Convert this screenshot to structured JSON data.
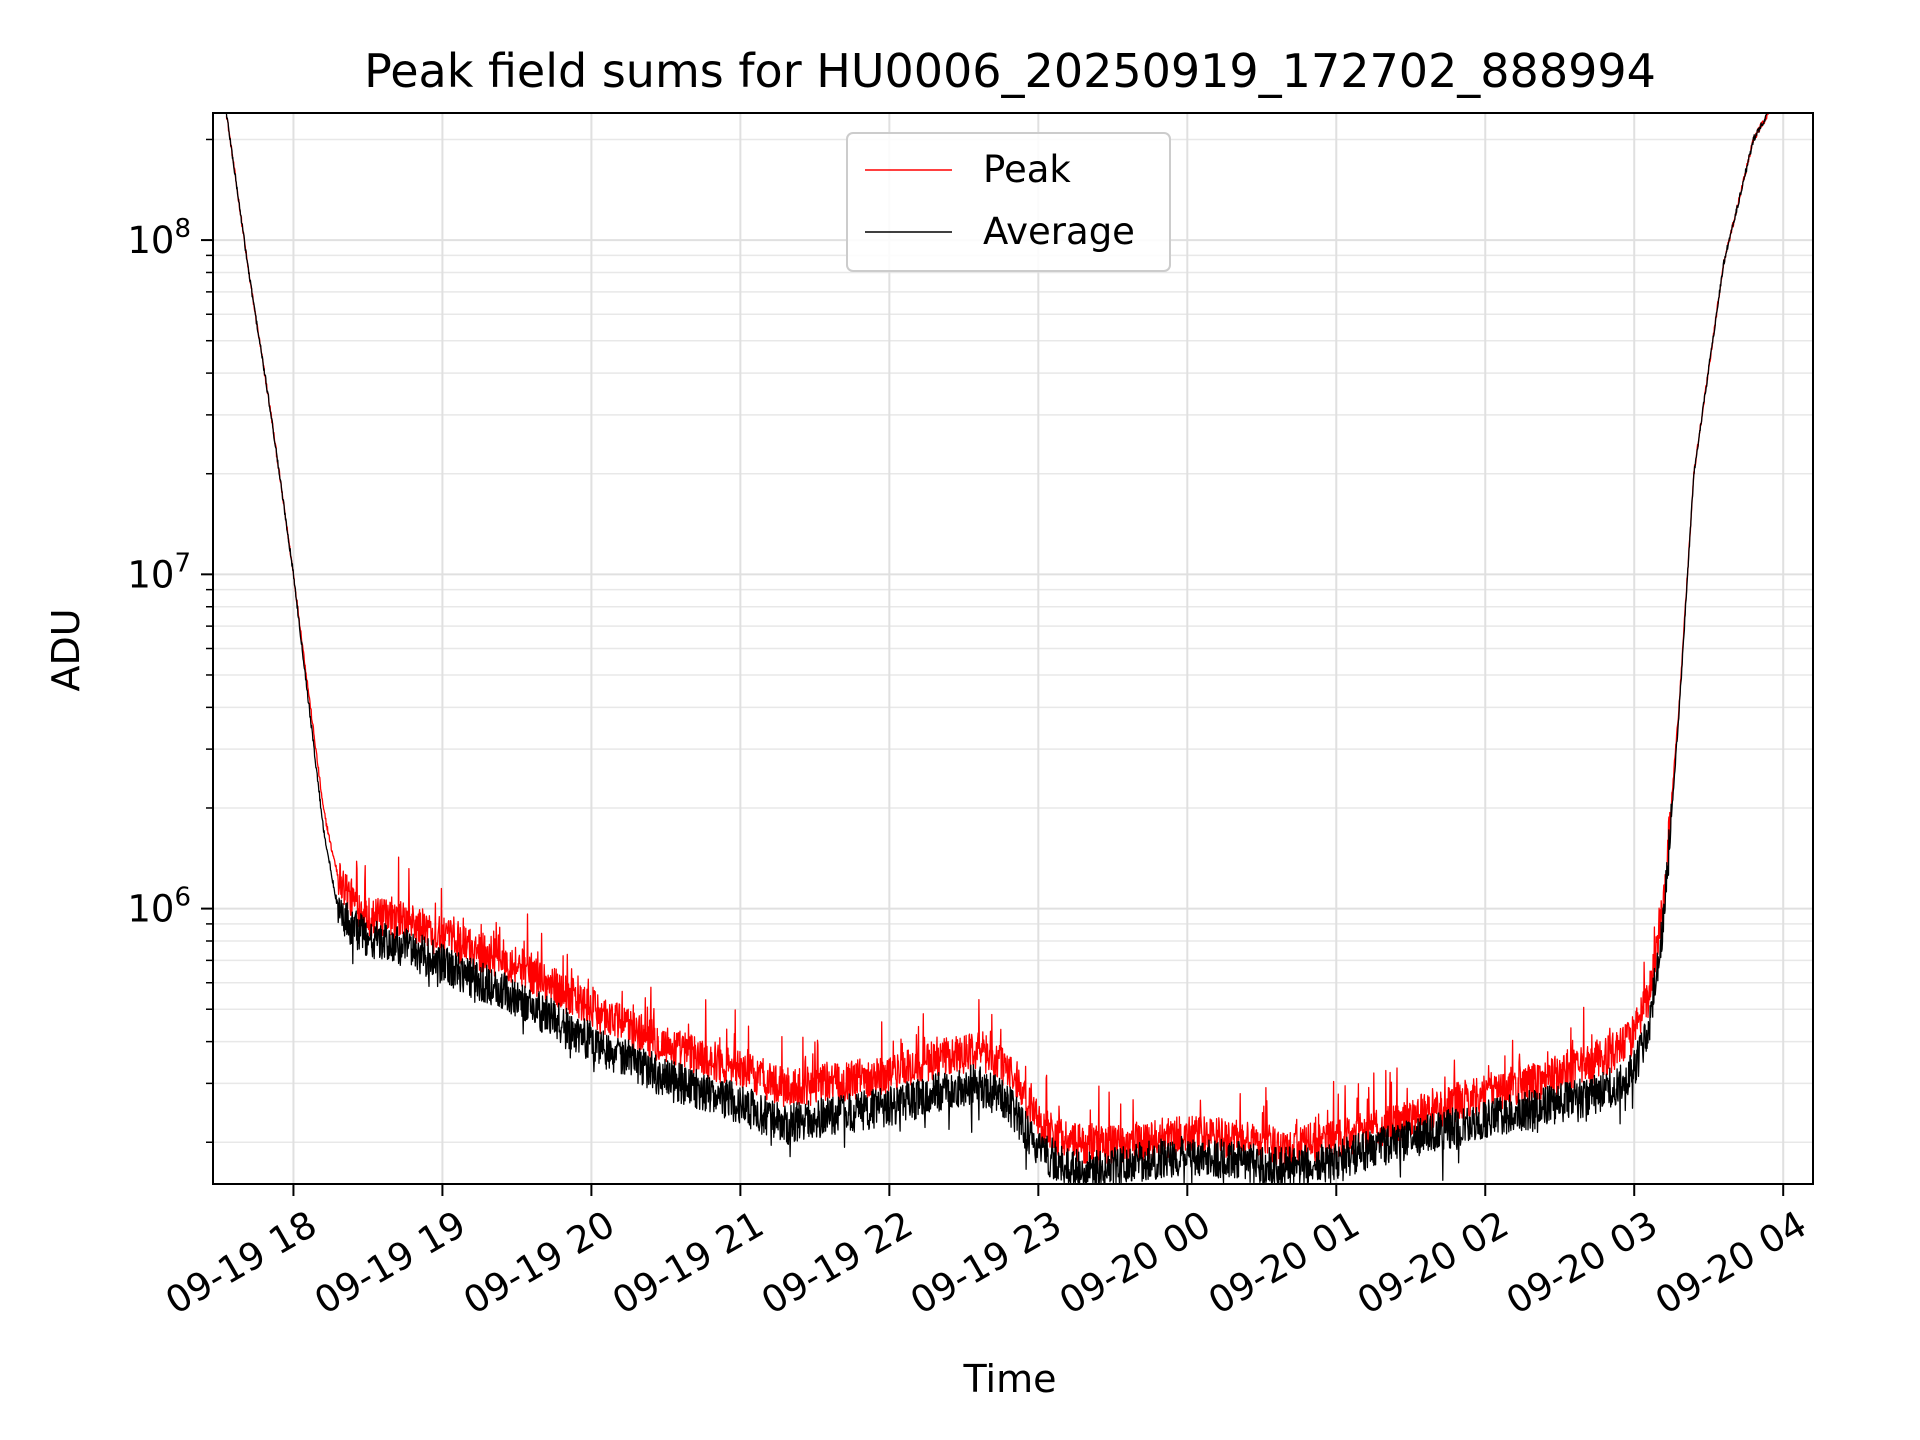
{
  "chart_data": {
    "type": "line",
    "title": "Peak field sums for HU0006_20250919_172702_888994",
    "xlabel": "Time",
    "ylabel": "ADU",
    "yscale": "log",
    "xlim_hours": [
      -0.54,
      10.2
    ],
    "ylim": [
      150000,
      240000000
    ],
    "grid": true,
    "legend_position": "top-center",
    "x_tick_labels": [
      "09-19 18",
      "09-19 19",
      "09-19 20",
      "09-19 21",
      "09-19 22",
      "09-19 23",
      "09-20 00",
      "09-20 01",
      "09-20 02",
      "09-20 03",
      "09-20 04"
    ],
    "x_ticks_hours": [
      0,
      1,
      2,
      3,
      4,
      5,
      6,
      7,
      8,
      9,
      10
    ],
    "y_ticks": [
      {
        "value": 1000000,
        "base": "10",
        "exp": "6"
      },
      {
        "value": 10000000,
        "base": "10",
        "exp": "7"
      },
      {
        "value": 100000000,
        "base": "10",
        "exp": "8"
      }
    ],
    "x_reference": "hours after 09-19 18:00",
    "series": [
      {
        "name": "Peak",
        "color": "#ff0000",
        "x": [
          -0.45,
          -0.3,
          -0.15,
          0,
          0.1,
          0.2,
          0.25,
          0.3,
          0.4,
          0.5,
          0.6,
          0.8,
          1.0,
          1.5,
          2.0,
          2.5,
          3.0,
          3.3,
          3.6,
          4.0,
          4.3,
          4.6,
          4.8,
          5.0,
          5.2,
          5.4,
          5.6,
          5.8,
          6.0,
          6.3,
          6.6,
          6.9,
          7.2,
          7.6,
          8.0,
          8.4,
          8.7,
          8.9,
          9.0,
          9.1,
          9.2,
          9.3,
          9.4,
          9.6,
          9.8,
          9.9
        ],
        "values": [
          240000000,
          80000000,
          30000000,
          10000000,
          4500000,
          2000000,
          1550000,
          1250000,
          1050000,
          950000,
          930000,
          900000,
          820000,
          680000,
          500000,
          390000,
          330000,
          290000,
          300000,
          320000,
          350000,
          380000,
          330000,
          230000,
          200000,
          195000,
          200000,
          205000,
          210000,
          205000,
          195000,
          200000,
          215000,
          245000,
          280000,
          310000,
          340000,
          380000,
          420000,
          550000,
          1100000,
          4000000,
          20000000,
          85000000,
          200000000,
          240000000
        ]
      },
      {
        "name": "Average",
        "color": "#000000",
        "x": [
          -0.45,
          -0.3,
          -0.15,
          0,
          0.1,
          0.2,
          0.25,
          0.3,
          0.4,
          0.5,
          0.6,
          0.8,
          1.0,
          1.5,
          2.0,
          2.5,
          3.0,
          3.3,
          3.6,
          4.0,
          4.3,
          4.6,
          4.8,
          5.0,
          5.2,
          5.4,
          5.6,
          5.8,
          6.0,
          6.3,
          6.6,
          6.9,
          7.2,
          7.6,
          8.0,
          8.4,
          8.7,
          8.9,
          9.0,
          9.1,
          9.2,
          9.3,
          9.4,
          9.6,
          9.8,
          9.9
        ],
        "values": [
          240000000,
          80000000,
          30000000,
          10000000,
          4200000,
          1750000,
          1300000,
          1000000,
          870000,
          820000,
          790000,
          750000,
          680000,
          540000,
          400000,
          310000,
          260000,
          225000,
          240000,
          255000,
          280000,
          300000,
          260000,
          190000,
          168000,
          165000,
          172000,
          178000,
          182000,
          178000,
          168000,
          172000,
          188000,
          210000,
          235000,
          255000,
          275000,
          300000,
          330000,
          450000,
          950000,
          3800000,
          20000000,
          85000000,
          200000000,
          240000000
        ]
      }
    ]
  }
}
